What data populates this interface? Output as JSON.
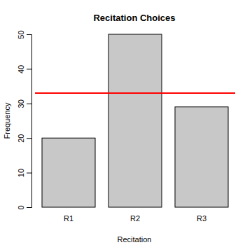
{
  "chart_data": {
    "type": "bar",
    "title": "Recitation Choices",
    "x_label": "Recitation",
    "y_label": "Frequency",
    "categories": [
      "R1",
      "R2",
      "R3"
    ],
    "values": [
      20,
      50,
      29
    ],
    "color": "#c8c8c8",
    "ylim": [
      0,
      50
    ],
    "yticks": [
      0,
      10,
      20,
      30,
      40,
      50
    ],
    "hline": {
      "value": 33,
      "color": "#ff0000"
    }
  }
}
